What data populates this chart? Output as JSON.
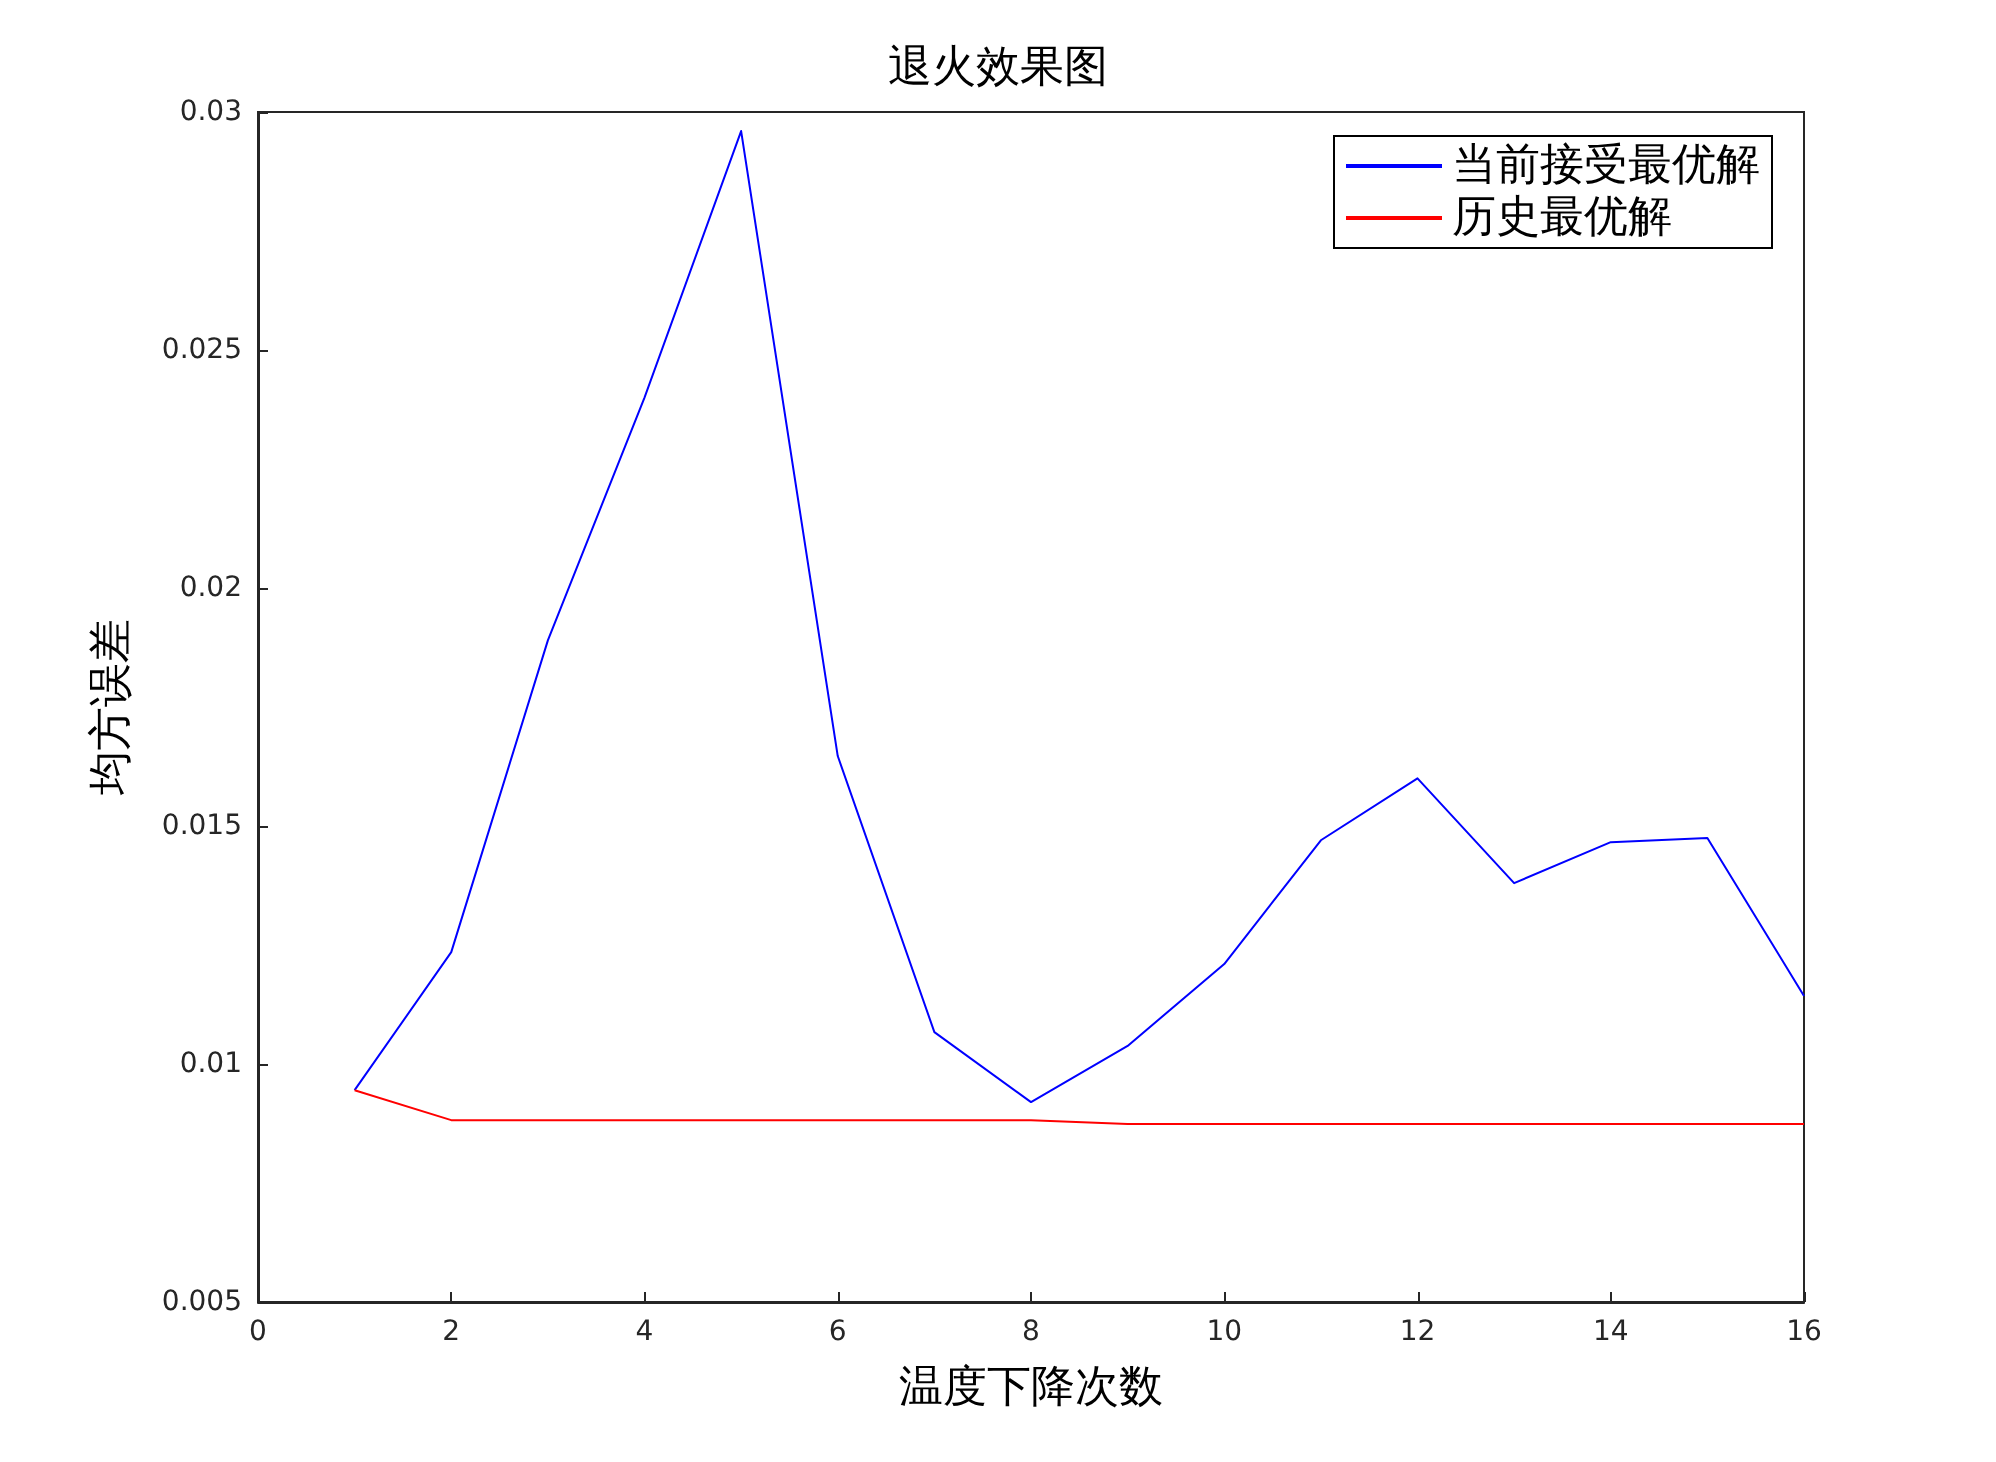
{
  "chart_data": {
    "type": "line",
    "title": "退火效果图",
    "xlabel": "温度下降次数",
    "ylabel": "均方误差",
    "x": [
      1,
      2,
      3,
      4,
      5,
      6,
      7,
      8,
      9,
      10,
      11,
      12,
      13,
      14,
      15,
      16
    ],
    "series": [
      {
        "name": "当前接受最优解",
        "color": "#0000ff",
        "values": [
          0.00945,
          0.01235,
          0.0189,
          0.024,
          0.0296,
          0.01647,
          0.01067,
          0.0092,
          0.01038,
          0.0121,
          0.0147,
          0.016,
          0.0138,
          0.01466,
          0.01475,
          0.01143
        ]
      },
      {
        "name": "历史最优解",
        "color": "#ff0000",
        "values": [
          0.00945,
          0.00882,
          0.00882,
          0.00882,
          0.00882,
          0.00882,
          0.00882,
          0.00882,
          0.00874,
          0.00874,
          0.00874,
          0.00874,
          0.00874,
          0.00874,
          0.00874,
          0.00874
        ]
      }
    ],
    "xlim": [
      0,
      16
    ],
    "xticks": [
      0,
      2,
      4,
      6,
      8,
      10,
      12,
      14,
      16
    ],
    "ylim": [
      0.005,
      0.03
    ],
    "yticks": [
      0.005,
      0.01,
      0.015,
      0.02,
      0.025,
      0.03
    ],
    "grid": false,
    "legend": "top right",
    "marker": "none",
    "line_style": "solid"
  }
}
